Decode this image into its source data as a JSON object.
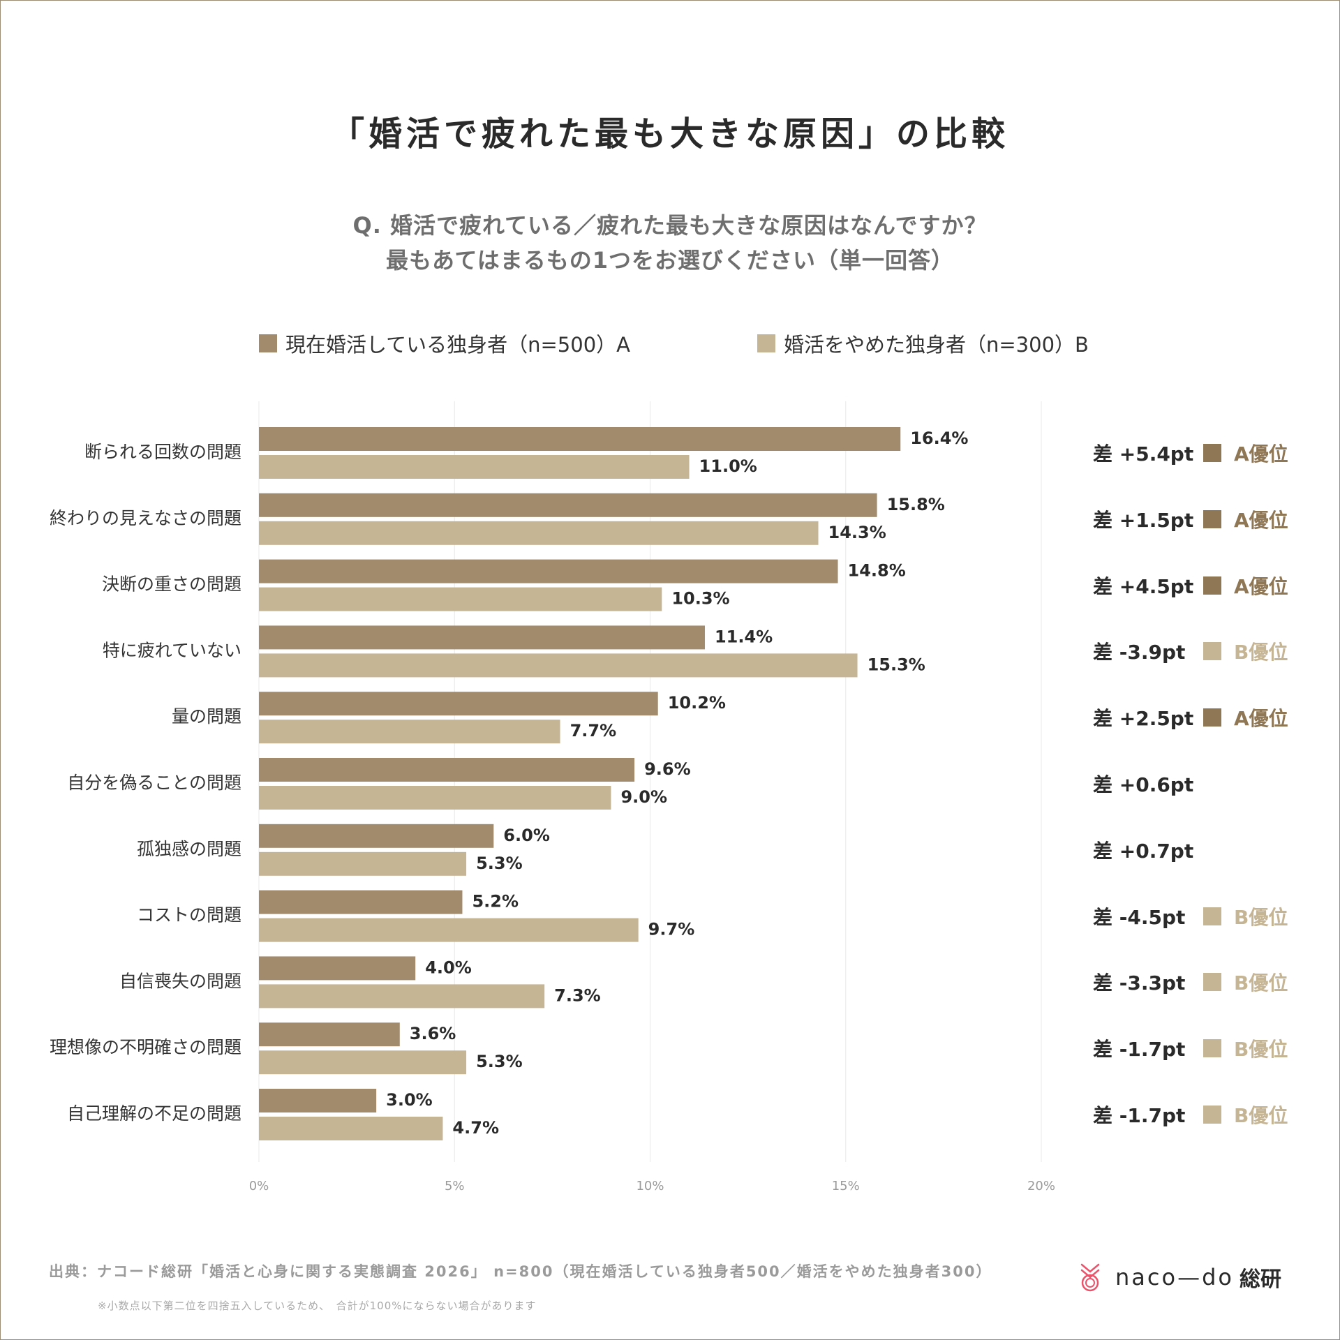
{
  "title": "「婚活で疲れた最も大きな原因」の比較",
  "question": {
    "line1": "Q. 婚活で疲れている／疲れた最も大きな原因はなんですか？",
    "line2": "最もあてはまるもの1つをお選びください（単一回答）"
  },
  "legend": {
    "a": "現在婚活している独身者（n=500）A",
    "b": "婚活をやめた独身者（n=300）B"
  },
  "colors": {
    "a": "#a28b6d",
    "b": "#c6b595",
    "grid": "#e8e8e8",
    "tick": "#9a9a9a",
    "label": "#333333",
    "value": "#2a2a2a",
    "adv_a": "#8f7654",
    "adv_b": "#c6b595"
  },
  "chart_data": {
    "type": "bar",
    "orientation": "horizontal",
    "categories": [
      "断られる回数の問題",
      "終わりの見えなさの問題",
      "決断の重さの問題",
      "特に疲れていない",
      "量の問題",
      "自分を偽ることの問題",
      "孤独感の問題",
      "コストの問題",
      "自信喪失の問題",
      "理想像の不明確さの問題",
      "自己理解の不足の問題"
    ],
    "series": [
      {
        "name": "現在婚活している独身者（n=500）A",
        "values": [
          16.4,
          15.8,
          14.8,
          11.4,
          10.2,
          9.6,
          6.0,
          5.2,
          4.0,
          3.6,
          3.0
        ],
        "labels": [
          "16.4%",
          "15.8%",
          "14.8%",
          "11.4%",
          "10.2%",
          "9.6%",
          "6.0%",
          "5.2%",
          "4.0%",
          "3.6%",
          "3.0%"
        ]
      },
      {
        "name": "婚活をやめた独身者（n=300）B",
        "values": [
          11.0,
          14.3,
          10.3,
          15.3,
          7.7,
          9.0,
          5.3,
          9.7,
          7.3,
          5.3,
          4.7
        ],
        "labels": [
          "11.0%",
          "14.3%",
          "10.3%",
          "15.3%",
          "7.7%",
          "9.0%",
          "5.3%",
          "9.7%",
          "7.3%",
          "5.3%",
          "4.7%"
        ]
      }
    ],
    "xlim": [
      0,
      20
    ],
    "xticks": [
      0,
      5,
      10,
      15,
      20
    ],
    "xtick_labels": [
      "0%",
      "5%",
      "10%",
      "15%",
      "20%"
    ],
    "grid": true,
    "legend_position": "top",
    "diffs": [
      {
        "text": "差 +5.4pt",
        "winner": "A",
        "advantage": "A優位"
      },
      {
        "text": "差 +1.5pt",
        "winner": "A",
        "advantage": "A優位"
      },
      {
        "text": "差 +4.5pt",
        "winner": "A",
        "advantage": "A優位"
      },
      {
        "text": "差 -3.9pt",
        "winner": "B",
        "advantage": "B優位"
      },
      {
        "text": "差 +2.5pt",
        "winner": "A",
        "advantage": "A優位"
      },
      {
        "text": "差 +0.6pt",
        "winner": "",
        "advantage": ""
      },
      {
        "text": "差 +0.7pt",
        "winner": "",
        "advantage": ""
      },
      {
        "text": "差 -4.5pt",
        "winner": "B",
        "advantage": "B優位"
      },
      {
        "text": "差 -3.3pt",
        "winner": "B",
        "advantage": "B優位"
      },
      {
        "text": "差 -1.7pt",
        "winner": "B",
        "advantage": "B優位"
      },
      {
        "text": "差 -1.7pt",
        "winner": "B",
        "advantage": "B優位"
      }
    ]
  },
  "footer": {
    "source": "出典：ナコード総研「婚活と心身に関する実態調査 2026」 n=800（現在婚活している独身者500／婚活をやめた独身者300）",
    "note": "※小数点以下第二位を四捨五入しているため、　合計が100%にならない場合があります"
  },
  "logo": {
    "word": "naco—do",
    "sub": "総研",
    "mark_icon": "naco-do-logo-icon"
  }
}
